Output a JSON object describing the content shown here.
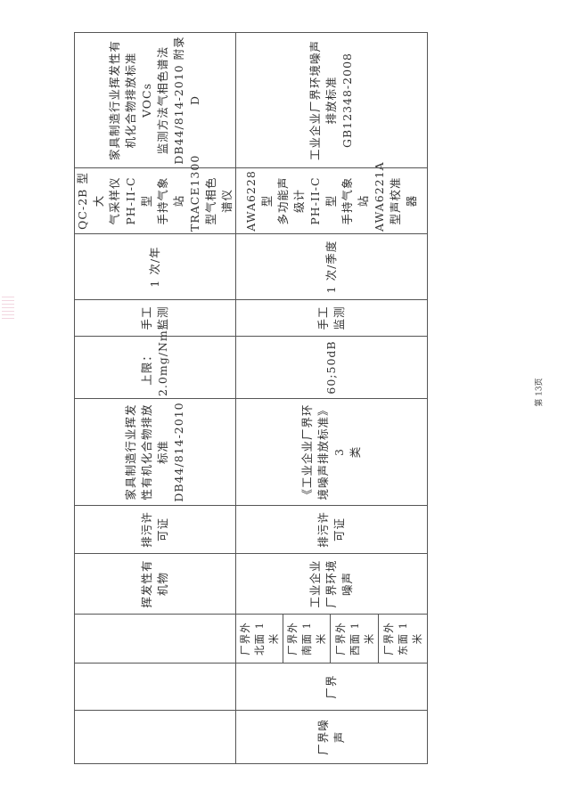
{
  "table": {
    "row_voc": {
      "category": "",
      "location": "",
      "point": "",
      "pollutant": "挥发性有\n机物",
      "basis": "排污许\n可证",
      "standard": "家具制造行业挥发\n性有机化合物排放\n标准\nDB44/814-2010",
      "limit": "上限：\n2.0mg/Nm³",
      "mode": "手工\n监测",
      "frequency": "1 次/年",
      "instrument": "QC-2B 型大\n气采样仪\nPH-II-C 型\n手持气象\n站\nTRACE1300\n型气相色\n谱仪",
      "method": "家具制造行业挥发性有\n机化合物排放标准 VOCs\n监测方法气相色谱法\nDB44/814-2010 附录 D"
    },
    "row_noise": {
      "category": "厂界噪\n声",
      "location": "厂界",
      "points": [
        "厂界外\n北面 1\n米",
        "厂界外\n南面 1\n米",
        "厂界外\n西面 1\n米",
        "厂界外\n东面 1\n米"
      ],
      "pollutant": "工业企业\n厂界环境\n噪声",
      "basis": "排污许\n可证",
      "standard": "《工业企业厂界环\n境噪声排放标准》3\n类",
      "limit": "60;50dB",
      "mode": "手工\n监测",
      "frequency": "1 次/季度",
      "instrument": "AWA6228 型\n多功能声\n级计\nPH-II-C 型\n手持气象\n站\nAWA6221A\n型声校准\n器",
      "method": "工业企业厂界环境噪声\n排放标准\nGB12348-2008"
    }
  },
  "footer": {
    "page_number": "第 13页"
  }
}
